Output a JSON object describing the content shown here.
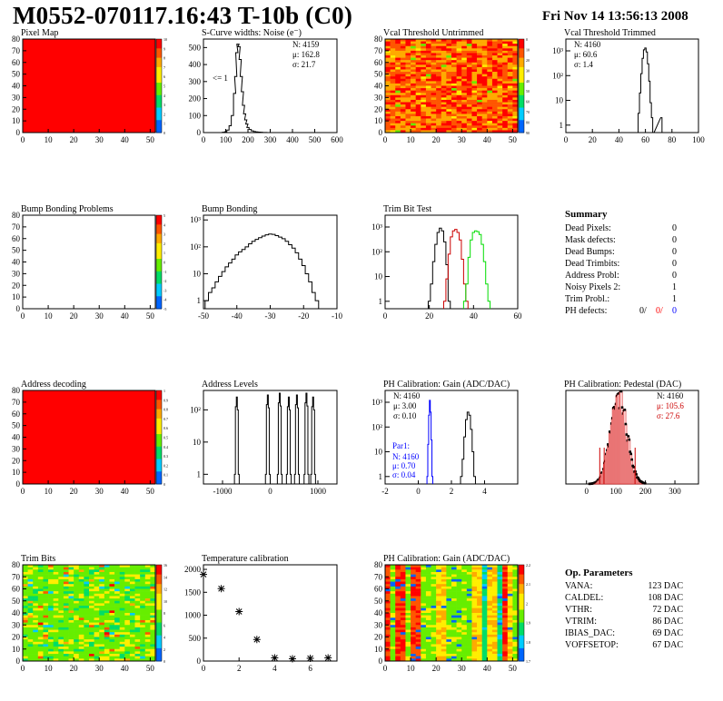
{
  "header": {
    "title": "M0552-070117.16:43 T-10b (C0)",
    "date": "Fri Nov 14 13:56:13 2008"
  },
  "colors": {
    "frame": "#000000",
    "red": "#ff0000",
    "green": "#00c000",
    "blue": "#0000ff",
    "trim_red": "#cc0000",
    "trim_green": "#00dd00"
  },
  "chart_data": [
    {
      "id": "pixel_map",
      "type": "heatmap",
      "title": "Pixel Map",
      "x_ticks": [
        "0",
        "10",
        "20",
        "30",
        "40",
        "50"
      ],
      "y_ticks": [
        "0",
        "10",
        "20",
        "30",
        "40",
        "50",
        "60",
        "70",
        "80"
      ],
      "xlim": [
        0,
        52
      ],
      "ylim": [
        0,
        80
      ],
      "fill": "uniform",
      "palette_value": 10,
      "colorbar_ticks": [
        "10",
        "9",
        "8",
        "7",
        "6",
        "5",
        "4",
        "3",
        "2",
        "1",
        "0"
      ]
    },
    {
      "id": "scurve_widths",
      "type": "histogram",
      "title": "S-Curve widths: Noise (e⁻)",
      "xlim": [
        0,
        600
      ],
      "ylim": [
        0,
        550
      ],
      "log": false,
      "x_ticks": [
        "0",
        "100",
        "200",
        "300",
        "400",
        "500",
        "600"
      ],
      "y_ticks": [
        "0",
        "100",
        "200",
        "300",
        "400",
        "500"
      ],
      "stats": [
        {
          "label": "N: 4159"
        },
        {
          "label": "μ: 162.8"
        },
        {
          "label": "σ: 21.7"
        }
      ],
      "annotation": "<= 1",
      "bins_x": [
        90,
        100,
        110,
        120,
        130,
        140,
        145,
        150,
        155,
        160,
        165,
        170,
        175,
        180,
        185,
        190,
        195,
        200,
        210,
        220,
        230,
        240,
        250,
        260,
        270,
        280,
        290
      ],
      "bins_y": [
        2,
        5,
        15,
        40,
        100,
        230,
        330,
        470,
        520,
        505,
        430,
        330,
        240,
        160,
        110,
        75,
        50,
        30,
        18,
        10,
        6,
        4,
        3,
        2,
        1,
        1,
        0
      ]
    },
    {
      "id": "vcal_untrimmed",
      "type": "heatmap",
      "title": "Vcal Threshold Untrimmed",
      "x_ticks": [
        "0",
        "10",
        "20",
        "30",
        "40",
        "50"
      ],
      "y_ticks": [
        "0",
        "10",
        "20",
        "30",
        "40",
        "50",
        "60",
        "70",
        "80"
      ],
      "xlim": [
        0,
        52
      ],
      "ylim": [
        0,
        80
      ],
      "fill": "noisy-warm",
      "colorbar_ticks": [
        "0",
        "10",
        "20",
        "30",
        "40",
        "50",
        "60",
        "70",
        "80",
        "90"
      ]
    },
    {
      "id": "vcal_trimmed",
      "type": "histogram",
      "title": "Vcal Threshold Trimmed",
      "xlim": [
        0,
        100
      ],
      "log": true,
      "ylim": [
        0.5,
        3000
      ],
      "x_ticks": [
        "0",
        "20",
        "40",
        "60",
        "80",
        "100"
      ],
      "y_ticks": [
        "1",
        "10",
        "10²",
        "10³"
      ],
      "stats": [
        {
          "label": "N: 4160"
        },
        {
          "label": "μ: 60.6"
        },
        {
          "label": "σ:  1.4"
        }
      ],
      "bins_x": [
        55,
        56,
        57,
        58,
        59,
        60,
        61,
        62,
        63,
        64,
        65,
        66,
        72,
        73
      ],
      "bins_y": [
        3,
        20,
        120,
        500,
        1100,
        1300,
        900,
        300,
        60,
        8,
        2,
        0,
        2,
        0
      ]
    },
    {
      "id": "bump_problems",
      "type": "heatmap",
      "title": "Bump Bonding Problems",
      "x_ticks": [
        "0",
        "10",
        "20",
        "30",
        "40",
        "50"
      ],
      "y_ticks": [
        "0",
        "10",
        "20",
        "30",
        "40",
        "50",
        "60",
        "70",
        "80"
      ],
      "xlim": [
        0,
        52
      ],
      "ylim": [
        0,
        80
      ],
      "fill": "empty",
      "colorbar_ticks": [
        "5",
        "4",
        "3",
        "2",
        "1",
        "0",
        "-1",
        "-2",
        "-3",
        "-4",
        "-5"
      ]
    },
    {
      "id": "bump_bonding",
      "type": "histogram",
      "title": "Bump Bonding",
      "xlim": [
        -50,
        -10
      ],
      "log": true,
      "ylim": [
        0.5,
        1500
      ],
      "x_ticks": [
        "-50",
        "-40",
        "-30",
        "-20",
        "-10"
      ],
      "y_ticks": [
        "1",
        "10",
        "10²",
        "10³"
      ],
      "bins_x": [
        -49,
        -48,
        -47,
        -46,
        -45,
        -44,
        -43,
        -42,
        -41,
        -40,
        -39,
        -38,
        -37,
        -36,
        -35,
        -34,
        -33,
        -32,
        -31,
        -30,
        -29,
        -28,
        -27,
        -26,
        -25,
        -24,
        -23,
        -22,
        -21,
        -20,
        -19,
        -18,
        -17,
        -16,
        -15
      ],
      "bins_y": [
        1,
        2,
        3,
        5,
        8,
        12,
        18,
        25,
        35,
        50,
        65,
        80,
        100,
        130,
        160,
        190,
        220,
        250,
        280,
        300,
        290,
        260,
        230,
        200,
        160,
        120,
        90,
        60,
        35,
        20,
        10,
        5,
        2,
        1,
        0
      ]
    },
    {
      "id": "trim_bit_test",
      "type": "histogram",
      "title": "Trim Bit Test",
      "xlim": [
        0,
        60
      ],
      "log": true,
      "ylim": [
        0.5,
        3000
      ],
      "x_ticks": [
        "0",
        "20",
        "40",
        "60"
      ],
      "y_ticks": [
        "1",
        "10",
        "10²",
        "10³"
      ],
      "series": [
        {
          "color": "#000000",
          "bins_x": [
            20,
            21,
            22,
            23,
            24,
            25,
            26,
            27,
            28,
            29
          ],
          "bins_y": [
            1,
            5,
            40,
            200,
            600,
            900,
            700,
            250,
            30,
            1
          ]
        },
        {
          "color": "#cc0000",
          "bins_x": [
            27,
            28,
            29,
            30,
            31,
            32,
            33,
            34,
            35,
            36,
            37
          ],
          "bins_y": [
            1,
            8,
            80,
            400,
            700,
            800,
            600,
            300,
            50,
            5,
            1
          ]
        },
        {
          "color": "#00dd00",
          "bins_x": [
            36,
            37,
            38,
            39,
            40,
            41,
            42,
            43,
            44,
            45,
            46,
            47
          ],
          "bins_y": [
            1,
            5,
            60,
            300,
            600,
            700,
            650,
            500,
            200,
            40,
            5,
            1
          ]
        }
      ]
    },
    {
      "id": "summary",
      "type": "table",
      "title": "Summary",
      "rows": [
        {
          "label": "Dead Pixels:",
          "value": "0"
        },
        {
          "label": "Mask defects:",
          "value": "0"
        },
        {
          "label": "Dead Bumps:",
          "value": "0"
        },
        {
          "label": "Dead Trimbits:",
          "value": "0"
        },
        {
          "label": "Address Probl:",
          "value": "0"
        },
        {
          "label": "Noisy Pixels 2:",
          "value": "1"
        },
        {
          "label": "Trim Probl.:",
          "value": "1"
        }
      ],
      "ph_defects": {
        "label": "PH defects:",
        "v1": "0/",
        "v2": "0/",
        "v3": "0"
      }
    },
    {
      "id": "address_decoding",
      "type": "heatmap",
      "title": "Address decoding",
      "x_ticks": [
        "0",
        "10",
        "20",
        "30",
        "40",
        "50"
      ],
      "y_ticks": [
        "0",
        "10",
        "20",
        "30",
        "40",
        "50",
        "60",
        "70",
        "80"
      ],
      "xlim": [
        0,
        52
      ],
      "ylim": [
        0,
        80
      ],
      "fill": "uniform",
      "colorbar_ticks": [
        "1",
        "0.9",
        "0.8",
        "0.7",
        "0.6",
        "0.5",
        "0.4",
        "0.3",
        "0.2",
        "0.1",
        "0"
      ]
    },
    {
      "id": "address_levels",
      "type": "histogram",
      "title": "Address Levels",
      "xlim": [
        -1400,
        1400
      ],
      "log": true,
      "ylim": [
        0.5,
        400
      ],
      "x_ticks": [
        "-1000",
        "0",
        "1000"
      ],
      "y_ticks": [
        "1",
        "10",
        "10²"
      ],
      "peaks": [
        -700,
        -50,
        200,
        390,
        560,
        760,
        900
      ]
    },
    {
      "id": "ph_gain",
      "type": "histogram",
      "title": "PH Calibration: Gain (ADC/DAC)",
      "xlim": [
        -2,
        6
      ],
      "log": true,
      "ylim": [
        0.5,
        3000
      ],
      "x_ticks": [
        "-2",
        "0",
        "2",
        "4"
      ],
      "y_ticks": [
        "1",
        "10",
        "10²",
        "10³"
      ],
      "stats": [
        {
          "label": "N: 4160"
        },
        {
          "label": "μ: 3.00"
        },
        {
          "label": "σ: 0.10"
        }
      ],
      "par_title": "Par1:",
      "par_stats": [
        {
          "label": "N: 4160"
        },
        {
          "label": "μ: 0.70"
        },
        {
          "label": "σ: 0.04"
        }
      ],
      "series": [
        {
          "color": "#000000",
          "bins_x": [
            2.6,
            2.7,
            2.8,
            2.9,
            3.0,
            3.1,
            3.2,
            3.3,
            3.4
          ],
          "bins_y": [
            1,
            5,
            40,
            200,
            400,
            300,
            80,
            10,
            1
          ]
        },
        {
          "color": "#0000ff",
          "bins_x": [
            0.55,
            0.6,
            0.65,
            0.7,
            0.75,
            0.8,
            0.85
          ],
          "bins_y": [
            1,
            20,
            300,
            1200,
            400,
            30,
            1
          ]
        }
      ]
    },
    {
      "id": "ph_pedestal",
      "type": "histogram",
      "title": "PH Calibration: Pedestal (DAC)",
      "xlim": [
        -70,
        380
      ],
      "log": false,
      "ylim": [
        0,
        120
      ],
      "x_ticks": [
        "0",
        "100",
        "200",
        "300"
      ],
      "y_ticks": [],
      "stats": [
        {
          "label": "N: 4160",
          "color": "#000000"
        },
        {
          "label": "μ: 105.6",
          "color": "#cc0000"
        },
        {
          "label": "σ: 27.6",
          "color": "#cc0000"
        }
      ]
    },
    {
      "id": "trim_bits",
      "type": "heatmap",
      "title": "Trim Bits",
      "x_ticks": [
        "0",
        "10",
        "20",
        "30",
        "40",
        "50"
      ],
      "y_ticks": [
        "0",
        "10",
        "20",
        "30",
        "40",
        "50",
        "60",
        "70",
        "80"
      ],
      "xlim": [
        0,
        52
      ],
      "ylim": [
        0,
        80
      ],
      "fill": "noisy-green",
      "colorbar_ticks": [
        "16",
        "14",
        "12",
        "10",
        "8",
        "6",
        "4",
        "2",
        "0"
      ]
    },
    {
      "id": "temperature_calibration",
      "type": "scatter",
      "title": "Temperature calibration",
      "xlim": [
        0,
        7.5
      ],
      "ylim": [
        0,
        2100
      ],
      "x_ticks": [
        "0",
        "2",
        "4",
        "6"
      ],
      "y_ticks": [
        "0",
        "500",
        "1000",
        "1500",
        "2000"
      ],
      "x": [
        0,
        1,
        2,
        3,
        4,
        5,
        6,
        7
      ],
      "y": [
        1890,
        1580,
        1080,
        470,
        70,
        50,
        60,
        70
      ]
    },
    {
      "id": "ph_gain_map",
      "type": "heatmap",
      "title": "PH Calibration: Gain (ADC/DAC)",
      "x_ticks": [
        "0",
        "10",
        "20",
        "30",
        "40",
        "50"
      ],
      "y_ticks": [
        "0",
        "10",
        "20",
        "30",
        "40",
        "50",
        "60",
        "70",
        "80"
      ],
      "xlim": [
        0,
        52
      ],
      "ylim": [
        0,
        80
      ],
      "fill": "striped",
      "colorbar_ticks": [
        "2.2",
        "2.1",
        "2",
        "1.9",
        "1.8",
        "1.7"
      ]
    },
    {
      "id": "op_parameters",
      "type": "table",
      "title": "Op. Parameters",
      "rows": [
        {
          "label": "VANA:",
          "value": "123 DAC"
        },
        {
          "label": "CALDEL:",
          "value": "108 DAC"
        },
        {
          "label": "VTHR:",
          "value": "72 DAC"
        },
        {
          "label": "VTRIM:",
          "value": "86 DAC"
        },
        {
          "label": "IBIAS_DAC:",
          "value": "69 DAC"
        },
        {
          "label": "VOFFSETOP:",
          "value": "67 DAC"
        }
      ]
    }
  ]
}
